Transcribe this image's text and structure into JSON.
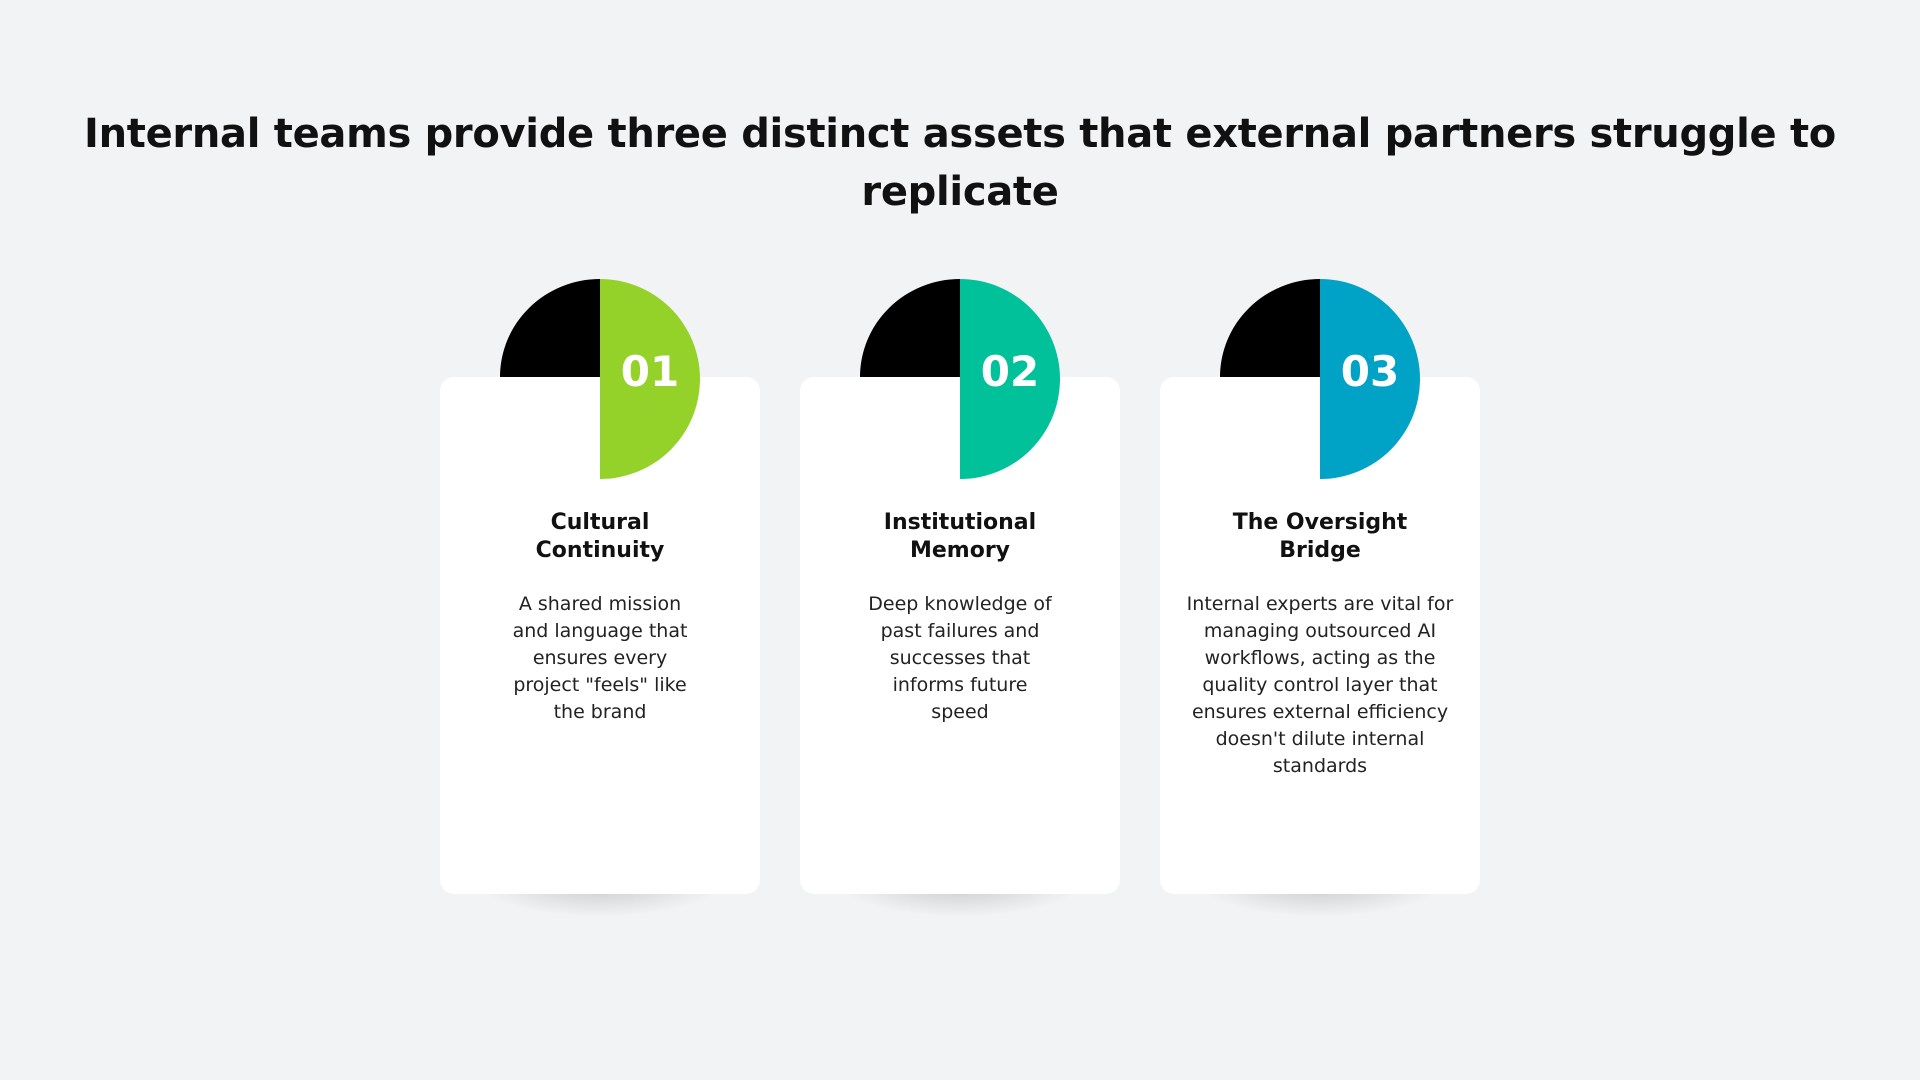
{
  "title": "Internal teams provide three distinct assets that external partners struggle to replicate",
  "cards": [
    {
      "number": "01",
      "heading": "Cultural Continuity",
      "description": "A shared mission and language that ensures every project \"feels\" like the brand",
      "color": "#94d22a"
    },
    {
      "number": "02",
      "heading": "Institutional Memory",
      "description": "Deep knowledge of past failures and successes that informs future speed",
      "color": "#00c19a"
    },
    {
      "number": "03",
      "heading": "The Oversight Bridge",
      "description": "Internal experts are vital for managing outsourced AI workflows, acting as the quality control layer that ensures external efficiency doesn't dilute internal standards",
      "color": "#00a3c6"
    }
  ]
}
